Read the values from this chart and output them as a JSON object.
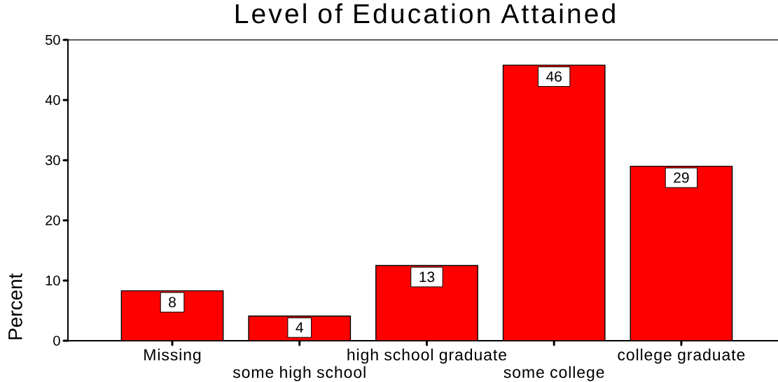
{
  "chart_data": {
    "type": "bar",
    "title": "Level of Education Attained",
    "ylabel": "Percent",
    "categories": [
      "Missing",
      "some high school",
      "high school graduate",
      "some college",
      "college graduate"
    ],
    "values": [
      8.3,
      4.1,
      12.5,
      45.8,
      29.0
    ],
    "value_labels": [
      "8",
      "4",
      "13",
      "46",
      "29"
    ],
    "color": "#ff0000",
    "ylim": [
      0,
      50
    ],
    "yticks": [
      0,
      10,
      20,
      30,
      40,
      50
    ]
  }
}
